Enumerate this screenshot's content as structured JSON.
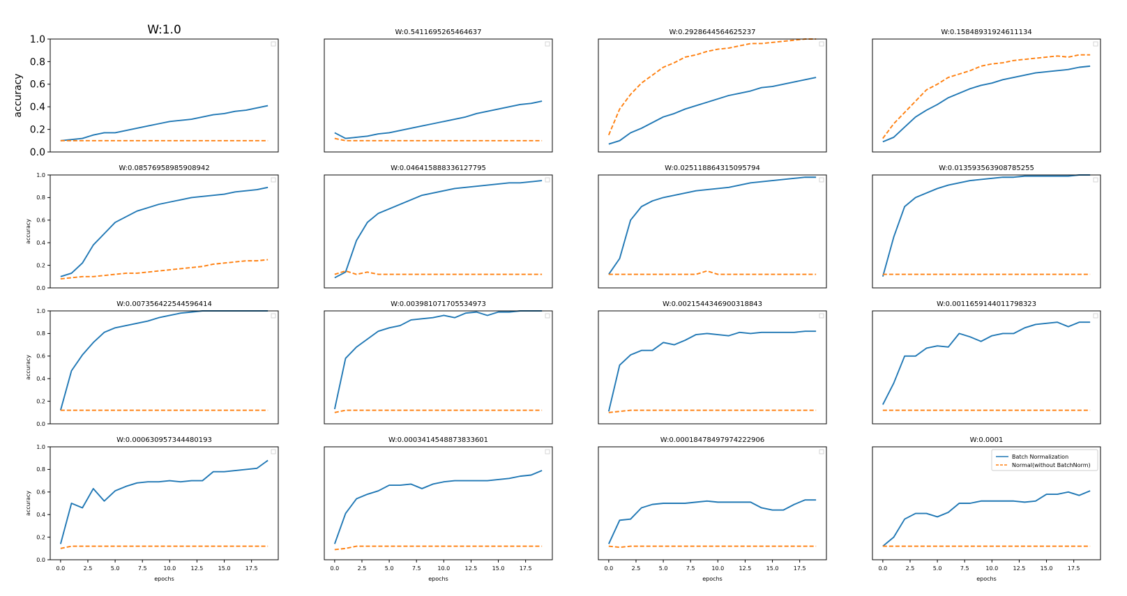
{
  "figure": {
    "series_colors": {
      "bn": "#1f77b4",
      "normal": "#ff7f0e"
    },
    "legend": {
      "entries": [
        "Batch Normalization",
        "Normal(without BatchNorm)"
      ],
      "location": "upper right of last subplot"
    }
  },
  "chart_data": [
    {
      "type": "line",
      "title": "W:1.0",
      "ylabel": "accuracy",
      "xlabel": "",
      "xlim": [
        -0.95,
        19.95
      ],
      "ylim": [
        0,
        1.0
      ],
      "yticks": [
        "0.0",
        "0.2",
        "0.4",
        "0.6",
        "0.8",
        "1.0"
      ],
      "xticks": [],
      "series": [
        {
          "values": [
            0.1,
            0.11,
            0.12,
            0.15,
            0.17,
            0.17,
            0.19,
            0.21,
            0.23,
            0.25,
            0.27,
            0.28,
            0.29,
            0.31,
            0.33,
            0.34,
            0.36,
            0.37,
            0.39,
            0.41
          ]
        },
        {
          "values": [
            0.1,
            0.1,
            0.1,
            0.1,
            0.1,
            0.1,
            0.1,
            0.1,
            0.1,
            0.1,
            0.1,
            0.1,
            0.1,
            0.1,
            0.1,
            0.1,
            0.1,
            0.1,
            0.1,
            0.1
          ]
        }
      ]
    },
    {
      "type": "line",
      "title": "W:0.5411695265464637",
      "ylabel": "",
      "xlabel": "",
      "xlim": [
        -0.95,
        19.95
      ],
      "ylim": [
        0,
        1.0
      ],
      "yticks": [],
      "xticks": [],
      "series": [
        {
          "values": [
            0.17,
            0.12,
            0.13,
            0.14,
            0.16,
            0.17,
            0.19,
            0.21,
            0.23,
            0.25,
            0.27,
            0.29,
            0.31,
            0.34,
            0.36,
            0.38,
            0.4,
            0.42,
            0.43,
            0.45
          ]
        },
        {
          "values": [
            0.12,
            0.1,
            0.1,
            0.1,
            0.1,
            0.1,
            0.1,
            0.1,
            0.1,
            0.1,
            0.1,
            0.1,
            0.1,
            0.1,
            0.1,
            0.1,
            0.1,
            0.1,
            0.1,
            0.1
          ]
        }
      ]
    },
    {
      "type": "line",
      "title": "W:0.2928644564625237",
      "ylabel": "",
      "xlabel": "",
      "xlim": [
        -0.95,
        19.95
      ],
      "ylim": [
        0,
        1.0
      ],
      "yticks": [],
      "xticks": [],
      "series": [
        {
          "values": [
            0.07,
            0.1,
            0.17,
            0.21,
            0.26,
            0.31,
            0.34,
            0.38,
            0.41,
            0.44,
            0.47,
            0.5,
            0.52,
            0.54,
            0.57,
            0.58,
            0.6,
            0.62,
            0.64,
            0.66
          ]
        },
        {
          "values": [
            0.15,
            0.38,
            0.51,
            0.61,
            0.68,
            0.75,
            0.79,
            0.84,
            0.86,
            0.89,
            0.91,
            0.92,
            0.94,
            0.96,
            0.96,
            0.97,
            0.98,
            0.99,
            1.0,
            1.0
          ]
        }
      ]
    },
    {
      "type": "line",
      "title": "W:0.15848931924611134",
      "ylabel": "",
      "xlabel": "",
      "xlim": [
        -0.95,
        19.95
      ],
      "ylim": [
        0,
        1.0
      ],
      "yticks": [],
      "xticks": [],
      "series": [
        {
          "values": [
            0.09,
            0.13,
            0.22,
            0.31,
            0.37,
            0.42,
            0.48,
            0.52,
            0.56,
            0.59,
            0.61,
            0.64,
            0.66,
            0.68,
            0.7,
            0.71,
            0.72,
            0.73,
            0.75,
            0.76
          ]
        },
        {
          "values": [
            0.12,
            0.25,
            0.35,
            0.45,
            0.55,
            0.6,
            0.66,
            0.69,
            0.72,
            0.76,
            0.78,
            0.79,
            0.81,
            0.82,
            0.83,
            0.84,
            0.85,
            0.84,
            0.86,
            0.86
          ]
        }
      ]
    },
    {
      "type": "line",
      "title": "W:0.08576958985908942",
      "ylabel": "accuracy",
      "xlabel": "",
      "xlim": [
        -0.95,
        19.95
      ],
      "ylim": [
        0,
        1.0
      ],
      "yticks": [
        "0.0",
        "0.2",
        "0.4",
        "0.6",
        "0.8",
        "1.0"
      ],
      "xticks": [],
      "series": [
        {
          "values": [
            0.1,
            0.13,
            0.22,
            0.38,
            0.48,
            0.58,
            0.63,
            0.68,
            0.71,
            0.74,
            0.76,
            0.78,
            0.8,
            0.81,
            0.82,
            0.83,
            0.85,
            0.86,
            0.87,
            0.89
          ]
        },
        {
          "values": [
            0.08,
            0.09,
            0.1,
            0.1,
            0.11,
            0.12,
            0.13,
            0.13,
            0.14,
            0.15,
            0.16,
            0.17,
            0.18,
            0.19,
            0.21,
            0.22,
            0.23,
            0.24,
            0.24,
            0.25
          ]
        }
      ]
    },
    {
      "type": "line",
      "title": "W:0.046415888336127795",
      "ylabel": "",
      "xlabel": "",
      "xlim": [
        -0.95,
        19.95
      ],
      "ylim": [
        0,
        1.0
      ],
      "yticks": [],
      "xticks": [],
      "series": [
        {
          "values": [
            0.09,
            0.14,
            0.42,
            0.58,
            0.66,
            0.7,
            0.74,
            0.78,
            0.82,
            0.84,
            0.86,
            0.88,
            0.89,
            0.9,
            0.91,
            0.92,
            0.93,
            0.93,
            0.94,
            0.95
          ]
        },
        {
          "values": [
            0.12,
            0.15,
            0.12,
            0.14,
            0.12,
            0.12,
            0.12,
            0.12,
            0.12,
            0.12,
            0.12,
            0.12,
            0.12,
            0.12,
            0.12,
            0.12,
            0.12,
            0.12,
            0.12,
            0.12
          ]
        }
      ]
    },
    {
      "type": "line",
      "title": "W:0.025118864315095794",
      "ylabel": "",
      "xlabel": "",
      "xlim": [
        -0.95,
        19.95
      ],
      "ylim": [
        0,
        1.0
      ],
      "yticks": [],
      "xticks": [],
      "series": [
        {
          "values": [
            0.12,
            0.26,
            0.6,
            0.72,
            0.77,
            0.8,
            0.82,
            0.84,
            0.86,
            0.87,
            0.88,
            0.89,
            0.91,
            0.93,
            0.94,
            0.95,
            0.96,
            0.97,
            0.98,
            0.98
          ]
        },
        {
          "values": [
            0.12,
            0.12,
            0.12,
            0.12,
            0.12,
            0.12,
            0.12,
            0.12,
            0.12,
            0.15,
            0.12,
            0.12,
            0.12,
            0.12,
            0.12,
            0.12,
            0.12,
            0.12,
            0.12,
            0.12
          ]
        }
      ]
    },
    {
      "type": "line",
      "title": "W:0.013593563908785255",
      "ylabel": "",
      "xlabel": "",
      "xlim": [
        -0.95,
        19.95
      ],
      "ylim": [
        0,
        1.0
      ],
      "yticks": [],
      "xticks": [],
      "series": [
        {
          "values": [
            0.1,
            0.45,
            0.72,
            0.8,
            0.84,
            0.88,
            0.91,
            0.93,
            0.95,
            0.96,
            0.97,
            0.98,
            0.98,
            0.99,
            0.99,
            0.99,
            0.99,
            0.99,
            1.0,
            1.0
          ]
        },
        {
          "values": [
            0.12,
            0.12,
            0.12,
            0.12,
            0.12,
            0.12,
            0.12,
            0.12,
            0.12,
            0.12,
            0.12,
            0.12,
            0.12,
            0.12,
            0.12,
            0.12,
            0.12,
            0.12,
            0.12,
            0.12
          ]
        }
      ]
    },
    {
      "type": "line",
      "title": "W:0.007356422544596414",
      "ylabel": "accuracy",
      "xlabel": "",
      "xlim": [
        -0.95,
        19.95
      ],
      "ylim": [
        0,
        1.0
      ],
      "yticks": [
        "0.0",
        "0.2",
        "0.4",
        "0.6",
        "0.8",
        "1.0"
      ],
      "xticks": [],
      "series": [
        {
          "values": [
            0.12,
            0.47,
            0.61,
            0.72,
            0.81,
            0.85,
            0.87,
            0.89,
            0.91,
            0.94,
            0.96,
            0.98,
            0.99,
            1.0,
            1.0,
            1.0,
            1.0,
            1.0,
            1.0,
            1.0
          ]
        },
        {
          "values": [
            0.12,
            0.12,
            0.12,
            0.12,
            0.12,
            0.12,
            0.12,
            0.12,
            0.12,
            0.12,
            0.12,
            0.12,
            0.12,
            0.12,
            0.12,
            0.12,
            0.12,
            0.12,
            0.12,
            0.12
          ]
        }
      ]
    },
    {
      "type": "line",
      "title": "W:0.003981071705534973",
      "ylabel": "",
      "xlabel": "",
      "xlim": [
        -0.95,
        19.95
      ],
      "ylim": [
        0,
        1.0
      ],
      "yticks": [],
      "xticks": [],
      "series": [
        {
          "values": [
            0.13,
            0.58,
            0.68,
            0.75,
            0.82,
            0.85,
            0.87,
            0.92,
            0.93,
            0.94,
            0.96,
            0.94,
            0.98,
            0.99,
            0.96,
            0.99,
            0.99,
            1.0,
            1.0,
            1.0
          ]
        },
        {
          "values": [
            0.1,
            0.12,
            0.12,
            0.12,
            0.12,
            0.12,
            0.12,
            0.12,
            0.12,
            0.12,
            0.12,
            0.12,
            0.12,
            0.12,
            0.12,
            0.12,
            0.12,
            0.12,
            0.12,
            0.12
          ]
        }
      ]
    },
    {
      "type": "line",
      "title": "W:0.0021544346900318843",
      "ylabel": "",
      "xlabel": "",
      "xlim": [
        -0.95,
        19.95
      ],
      "ylim": [
        0,
        1.0
      ],
      "yticks": [],
      "xticks": [],
      "series": [
        {
          "values": [
            0.11,
            0.52,
            0.61,
            0.65,
            0.65,
            0.72,
            0.7,
            0.74,
            0.79,
            0.8,
            0.79,
            0.78,
            0.81,
            0.8,
            0.81,
            0.81,
            0.81,
            0.81,
            0.82,
            0.82
          ]
        },
        {
          "values": [
            0.1,
            0.11,
            0.12,
            0.12,
            0.12,
            0.12,
            0.12,
            0.12,
            0.12,
            0.12,
            0.12,
            0.12,
            0.12,
            0.12,
            0.12,
            0.12,
            0.12,
            0.12,
            0.12,
            0.12
          ]
        }
      ]
    },
    {
      "type": "line",
      "title": "W:0.0011659144011798323",
      "ylabel": "",
      "xlabel": "",
      "xlim": [
        -0.95,
        19.95
      ],
      "ylim": [
        0,
        1.0
      ],
      "yticks": [],
      "xticks": [],
      "series": [
        {
          "values": [
            0.17,
            0.36,
            0.6,
            0.6,
            0.67,
            0.69,
            0.68,
            0.8,
            0.77,
            0.73,
            0.78,
            0.8,
            0.8,
            0.85,
            0.88,
            0.89,
            0.9,
            0.86,
            0.9,
            0.9
          ]
        },
        {
          "values": [
            0.12,
            0.12,
            0.12,
            0.12,
            0.12,
            0.12,
            0.12,
            0.12,
            0.12,
            0.12,
            0.12,
            0.12,
            0.12,
            0.12,
            0.12,
            0.12,
            0.12,
            0.12,
            0.12,
            0.12
          ]
        }
      ]
    },
    {
      "type": "line",
      "title": "W:0.000630957344480193",
      "ylabel": "accuracy",
      "xlabel": "epochs",
      "xlim": [
        -0.95,
        19.95
      ],
      "ylim": [
        0,
        1.0
      ],
      "yticks": [
        "0.0",
        "0.2",
        "0.4",
        "0.6",
        "0.8",
        "1.0"
      ],
      "xticks": [
        "0.0",
        "2.5",
        "5.0",
        "7.5",
        "10.0",
        "12.5",
        "15.0",
        "17.5"
      ],
      "series": [
        {
          "values": [
            0.14,
            0.5,
            0.46,
            0.63,
            0.52,
            0.61,
            0.65,
            0.68,
            0.69,
            0.69,
            0.7,
            0.69,
            0.7,
            0.7,
            0.78,
            0.78,
            0.79,
            0.8,
            0.81,
            0.88
          ]
        },
        {
          "values": [
            0.1,
            0.12,
            0.12,
            0.12,
            0.12,
            0.12,
            0.12,
            0.12,
            0.12,
            0.12,
            0.12,
            0.12,
            0.12,
            0.12,
            0.12,
            0.12,
            0.12,
            0.12,
            0.12,
            0.12
          ]
        }
      ]
    },
    {
      "type": "line",
      "title": "W:0.0003414548873833601",
      "ylabel": "",
      "xlabel": "epochs",
      "xlim": [
        -0.95,
        19.95
      ],
      "ylim": [
        0,
        1.0
      ],
      "yticks": [],
      "xticks": [
        "0.0",
        "2.5",
        "5.0",
        "7.5",
        "10.0",
        "12.5",
        "15.0",
        "17.5"
      ],
      "series": [
        {
          "values": [
            0.14,
            0.41,
            0.54,
            0.58,
            0.61,
            0.66,
            0.66,
            0.67,
            0.63,
            0.67,
            0.69,
            0.7,
            0.7,
            0.7,
            0.7,
            0.71,
            0.72,
            0.74,
            0.75,
            0.79
          ]
        },
        {
          "values": [
            0.09,
            0.1,
            0.12,
            0.12,
            0.12,
            0.12,
            0.12,
            0.12,
            0.12,
            0.12,
            0.12,
            0.12,
            0.12,
            0.12,
            0.12,
            0.12,
            0.12,
            0.12,
            0.12,
            0.12
          ]
        }
      ]
    },
    {
      "type": "line",
      "title": "W:0.00018478497974222906",
      "ylabel": "",
      "xlabel": "epochs",
      "xlim": [
        -0.95,
        19.95
      ],
      "ylim": [
        0,
        1.0
      ],
      "yticks": [],
      "xticks": [
        "0.0",
        "2.5",
        "5.0",
        "7.5",
        "10.0",
        "12.5",
        "15.0",
        "17.5"
      ],
      "series": [
        {
          "values": [
            0.14,
            0.35,
            0.36,
            0.46,
            0.49,
            0.5,
            0.5,
            0.5,
            0.51,
            0.52,
            0.51,
            0.51,
            0.51,
            0.51,
            0.46,
            0.44,
            0.44,
            0.49,
            0.53,
            0.53
          ]
        },
        {
          "values": [
            0.12,
            0.11,
            0.12,
            0.12,
            0.12,
            0.12,
            0.12,
            0.12,
            0.12,
            0.12,
            0.12,
            0.12,
            0.12,
            0.12,
            0.12,
            0.12,
            0.12,
            0.12,
            0.12,
            0.12
          ]
        }
      ]
    },
    {
      "type": "line",
      "title": "W:0.0001",
      "ylabel": "",
      "xlabel": "epochs",
      "xlim": [
        -0.95,
        19.95
      ],
      "ylim": [
        0,
        1.0
      ],
      "yticks": [],
      "xticks": [
        "0.0",
        "2.5",
        "5.0",
        "7.5",
        "10.0",
        "12.5",
        "15.0",
        "17.5"
      ],
      "legend": true,
      "series": [
        {
          "name": "Batch Normalization",
          "values": [
            0.12,
            0.2,
            0.36,
            0.41,
            0.41,
            0.38,
            0.42,
            0.5,
            0.5,
            0.52,
            0.52,
            0.52,
            0.52,
            0.51,
            0.52,
            0.58,
            0.58,
            0.6,
            0.57,
            0.61
          ]
        },
        {
          "name": "Normal(without BatchNorm)",
          "values": [
            0.12,
            0.12,
            0.12,
            0.12,
            0.12,
            0.12,
            0.12,
            0.12,
            0.12,
            0.12,
            0.12,
            0.12,
            0.12,
            0.12,
            0.12,
            0.12,
            0.12,
            0.12,
            0.12,
            0.12
          ]
        }
      ]
    }
  ]
}
